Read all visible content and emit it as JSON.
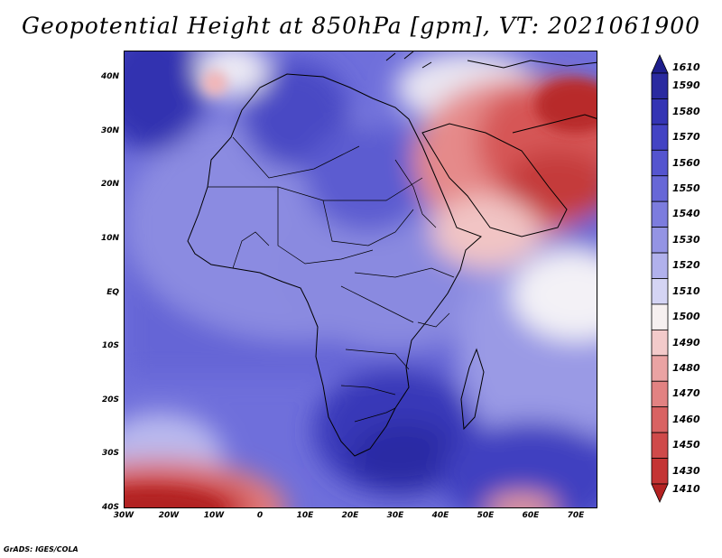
{
  "title": "Geopotential Height at 850hPa [gpm], VT: 2021061900",
  "footer": "GrADS: IGES/COLA",
  "lat_labels": [
    "40N",
    "30N",
    "20N",
    "10N",
    "EQ",
    "10S",
    "20S",
    "30S",
    "40S"
  ],
  "lon_labels": [
    "30W",
    "20W",
    "10W",
    "0",
    "10E",
    "20E",
    "30E",
    "40E",
    "50E",
    "60E",
    "70E"
  ],
  "colorbar": {
    "levels": [
      "1610",
      "1590",
      "1580",
      "1570",
      "1560",
      "1550",
      "1540",
      "1530",
      "1520",
      "1510",
      "1500",
      "1490",
      "1480",
      "1470",
      "1460",
      "1450",
      "1430",
      "1410"
    ],
    "colors": [
      "#1e1e8c",
      "#2a2aa0",
      "#3434b4",
      "#4343c4",
      "#5454cf",
      "#6767d7",
      "#7c7cde",
      "#9494e4",
      "#b1b1ec",
      "#d4d4f4",
      "#f6f0f0",
      "#f3caca",
      "#eaa3a3",
      "#e28282",
      "#d96262",
      "#cf4a4a",
      "#c43434",
      "#b42222"
    ]
  }
}
